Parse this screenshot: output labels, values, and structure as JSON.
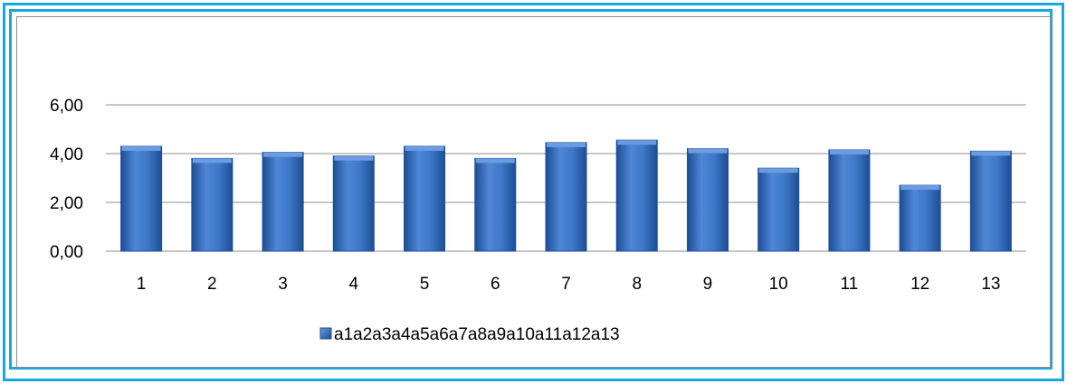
{
  "chart_data": {
    "type": "bar",
    "categories": [
      "1",
      "2",
      "3",
      "4",
      "5",
      "6",
      "7",
      "8",
      "9",
      "10",
      "11",
      "12",
      "13"
    ],
    "series": [
      {
        "name": "a1a2a3a4a5a6a7a8a9a10a11a12a13",
        "values": [
          4.3,
          3.8,
          4.05,
          3.9,
          4.3,
          3.8,
          4.45,
          4.55,
          4.2,
          3.4,
          4.15,
          2.7,
          4.1
        ]
      }
    ],
    "y_ticks": [
      "0,00",
      "2,00",
      "4,00",
      "6,00"
    ],
    "ylim": [
      0,
      6
    ],
    "grid": true,
    "legend_position": "bottom",
    "colors": {
      "bar": "#3f78c8",
      "bar_dark": "#1d4e96",
      "bar_light": "#6b9be0",
      "frame": "#1aa7e0",
      "grid": "#8c8c8c"
    }
  }
}
